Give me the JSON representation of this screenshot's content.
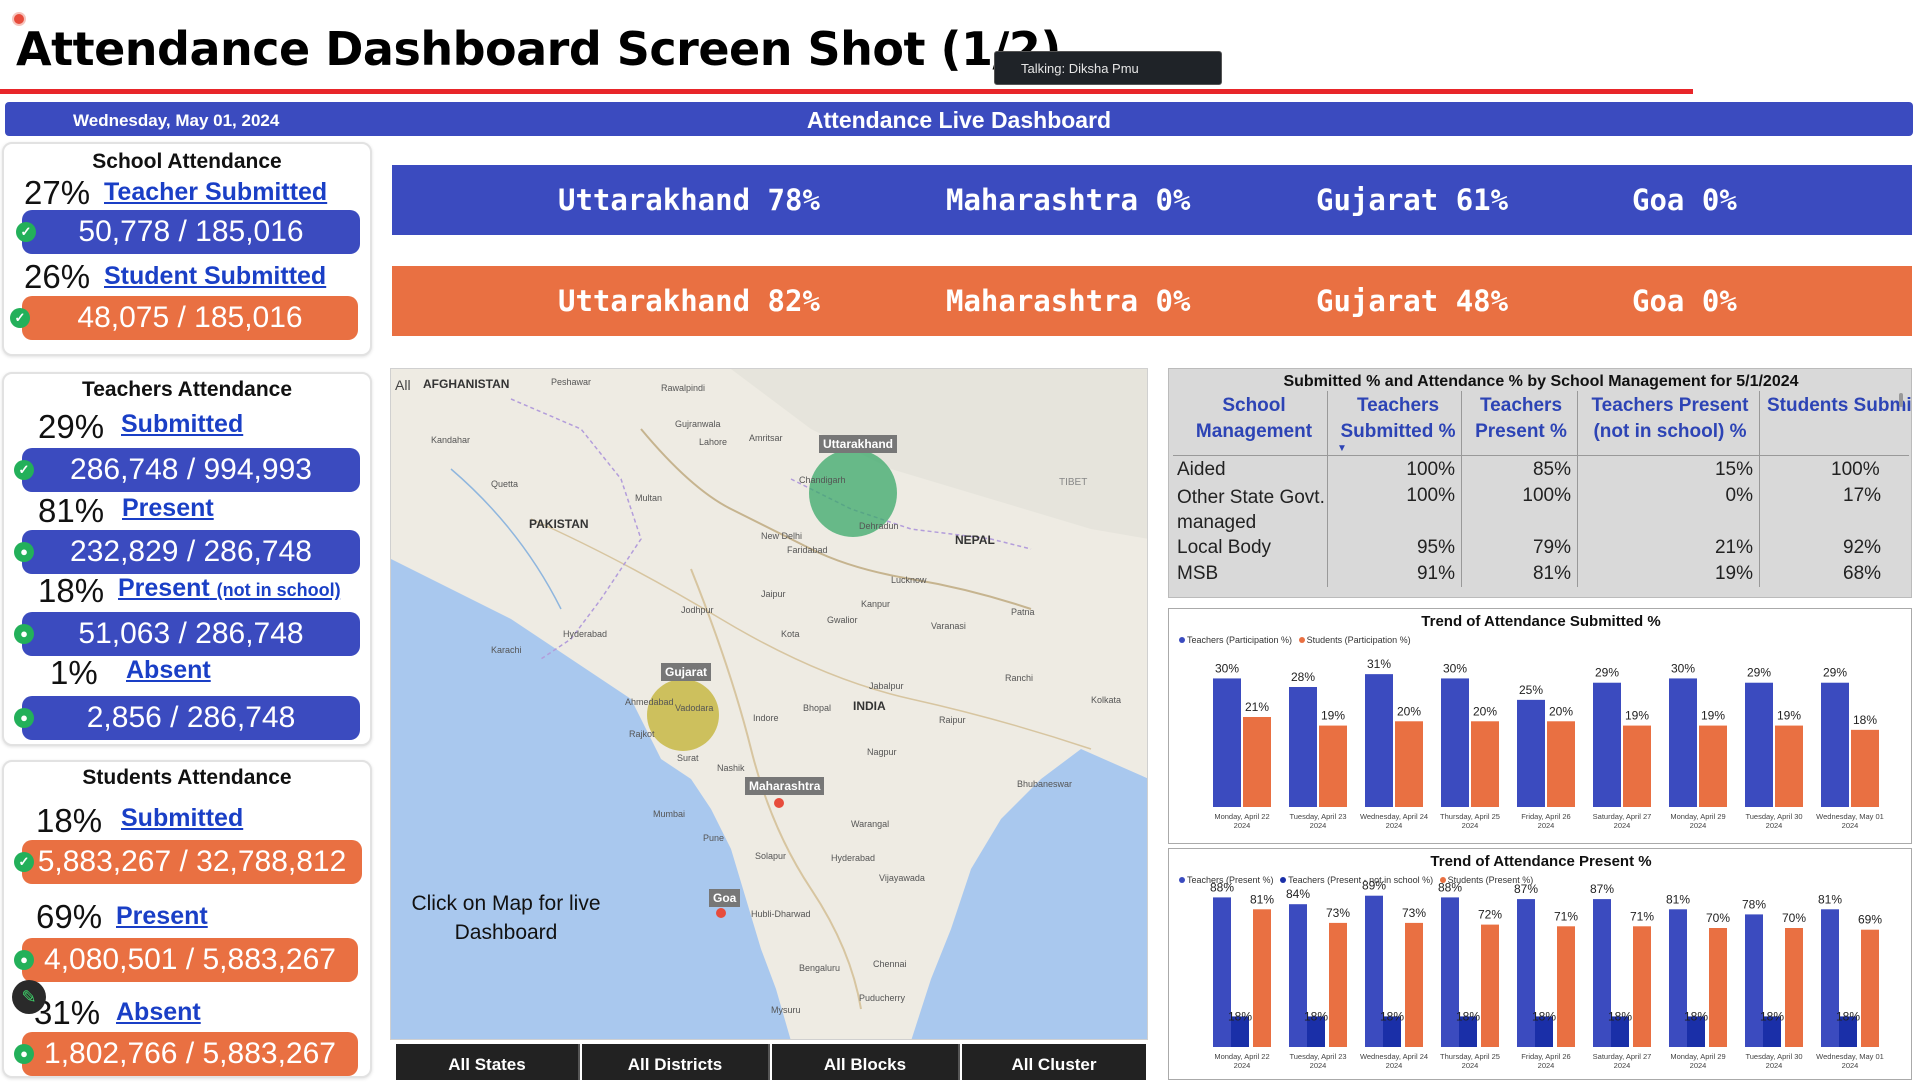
{
  "slide_title": "Attendance Dashboard Screen Shot (1/2)",
  "talking_label": "Talking: Diksha Pmu",
  "banner": {
    "date": "Wednesday, May 01, 2024",
    "title": "Attendance Live Dashboard"
  },
  "colors": {
    "blue": "#3b4bbf",
    "orange": "#e97042",
    "red_line": "#e8262a",
    "dark_blue": "#1a2fa8"
  },
  "school_attendance": {
    "title": "School Attendance",
    "teacher": {
      "pct": "27%",
      "label": "Teacher Submitted",
      "count": "50,778 / 185,016"
    },
    "student": {
      "pct": "26%",
      "label": "Student Submitted",
      "count": "48,075 / 185,016"
    }
  },
  "teachers_attendance": {
    "title": "Teachers Attendance",
    "submitted": {
      "pct": "29%",
      "label": "Submitted",
      "count": "286,748 / 994,993"
    },
    "present": {
      "pct": "81%",
      "label": "Present",
      "count": "232,829 / 286,748"
    },
    "present_not_school": {
      "pct": "18%",
      "label": "Present",
      "label_small": "(not in school)",
      "count": "51,063 / 286,748"
    },
    "absent": {
      "pct": "1%",
      "label": "Absent",
      "count": "2,856 / 286,748"
    }
  },
  "students_attendance": {
    "title": "Students Attendance",
    "submitted": {
      "pct": "18%",
      "label": "Submitted",
      "count": "5,883,267 / 32,788,812"
    },
    "present": {
      "pct": "69%",
      "label": "Present",
      "count": "4,080,501 / 5,883,267"
    },
    "absent": {
      "pct": "31%",
      "label": "Absent",
      "count": "1,802,766 / 5,883,267"
    }
  },
  "state_bar_teachers": [
    {
      "state": "Uttarakhand",
      "pct": "78%"
    },
    {
      "state": "Maharashtra",
      "pct": "0%"
    },
    {
      "state": "Gujarat",
      "pct": "61%"
    },
    {
      "state": "Goa",
      "pct": "0%"
    }
  ],
  "state_bar_students": [
    {
      "state": "Uttarakhand",
      "pct": "82%"
    },
    {
      "state": "Maharashtra",
      "pct": "0%"
    },
    {
      "state": "Gujarat",
      "pct": "48%"
    },
    {
      "state": "Goa",
      "pct": "0%"
    }
  ],
  "map": {
    "hint": "Click on Map for live Dashboard",
    "all_label": "All",
    "countries": [
      "AFGHANISTAN",
      "PAKISTAN",
      "NEPAL",
      "INDIA",
      "TIBET"
    ],
    "state_markers": [
      "Uttarakhand",
      "Gujarat",
      "Maharashtra",
      "Goa"
    ],
    "cities": [
      "Peshawar",
      "Rawalpindi",
      "Gujranwala",
      "Lahore",
      "Amritsar",
      "Multan",
      "Quetta",
      "Kandahar",
      "Chandigarh",
      "Dehradun",
      "New Delhi",
      "Faridabad",
      "Lucknow",
      "Kanpur",
      "Jaipur",
      "Jodhpur",
      "Kota",
      "Gwalior",
      "Varanasi",
      "Patna",
      "Hyderabad",
      "Karachi",
      "Ahmedabad",
      "Vadodara",
      "Rajkot",
      "Surat",
      "Bhopal",
      "Indore",
      "Jabalpur",
      "Raipur",
      "Nagpur",
      "Nashik",
      "Mumbai",
      "Pune",
      "Solapur",
      "Hyderabad",
      "Warangal",
      "Vijayawada",
      "Bhubaneswar",
      "Kolkata",
      "Ranchi",
      "Hubli-Dharwad",
      "Bengaluru",
      "Chennai",
      "Mysuru",
      "Puducherry"
    ],
    "buttons": [
      "All States",
      "All Districts",
      "All Blocks",
      "All Cluster"
    ]
  },
  "mgmt_table": {
    "title": "Submitted % and Attendance % by School Management for 5/1/2024",
    "headers": [
      "School Management",
      "Teachers Submitted %",
      "Teachers Present %",
      "Teachers Present (not in school) %",
      "Students Submitted %"
    ],
    "rows": [
      [
        "Aided",
        "100%",
        "85%",
        "15%",
        "100%"
      ],
      [
        "Other State Govt. managed",
        "100%",
        "100%",
        "0%",
        "17%"
      ],
      [
        "Local Body",
        "95%",
        "79%",
        "21%",
        "92%"
      ],
      [
        "MSB",
        "91%",
        "81%",
        "19%",
        "68%"
      ]
    ]
  },
  "chart_data": [
    {
      "type": "bar",
      "title": "Trend of Attendance Submitted %",
      "categories": [
        "Monday, April 22, 2024",
        "Tuesday, April 23, 2024",
        "Wednesday, April 24, 2024",
        "Thursday, April 25, 2024",
        "Friday, April 26, 2024",
        "Saturday, April 27, 2024",
        "Monday, April 29, 2024",
        "Tuesday, April 30, 2024",
        "Wednesday, May 01, 2024"
      ],
      "series": [
        {
          "name": "Teachers (Participation %)",
          "color": "#3b4bbf",
          "values": [
            30,
            28,
            31,
            30,
            25,
            29,
            30,
            29,
            29
          ]
        },
        {
          "name": "Students (Participation %)",
          "color": "#e97042",
          "values": [
            21,
            19,
            20,
            20,
            20,
            19,
            19,
            19,
            18
          ]
        }
      ],
      "ylim": [
        0,
        35
      ]
    },
    {
      "type": "bar",
      "title": "Trend of Attendance Present %",
      "categories": [
        "Monday, April 22, 2024",
        "Tuesday, April 23, 2024",
        "Wednesday, April 24, 2024",
        "Thursday, April 25, 2024",
        "Friday, April 26, 2024",
        "Saturday, April 27, 2024",
        "Monday, April 29, 2024",
        "Tuesday, April 30, 2024",
        "Wednesday, May 01, 2024"
      ],
      "series": [
        {
          "name": "Teachers (Present %)",
          "color": "#3b4bbf",
          "values": [
            88,
            84,
            89,
            88,
            87,
            87,
            81,
            78,
            81
          ]
        },
        {
          "name": "Teachers (Present - not in school %)",
          "color": "#1a2fa8",
          "values": [
            18,
            18,
            18,
            18,
            18,
            18,
            18,
            18,
            18
          ]
        },
        {
          "name": "Students (Present %)",
          "color": "#e97042",
          "values": [
            81,
            73,
            73,
            72,
            71,
            71,
            70,
            70,
            69
          ]
        }
      ],
      "ylim": [
        0,
        100
      ]
    }
  ]
}
